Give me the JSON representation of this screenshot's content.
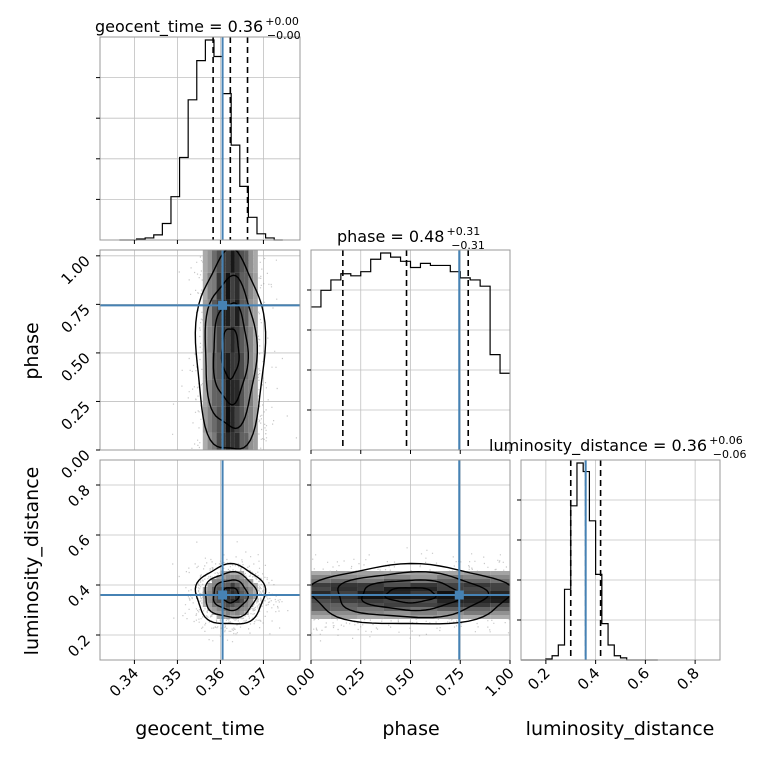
{
  "chart_data": {
    "type": "corner",
    "parameters": [
      "geocent_time",
      "phase",
      "luminosity_distance"
    ],
    "truths": [
      0.3605,
      0.745,
      0.36
    ],
    "colors": {
      "truth": "#4682b4",
      "hist": "#000000",
      "grid": "#c0c0c0",
      "frame": "#999999"
    },
    "panels": {
      "geocent_time": {
        "title_text": "geocent_time = 0.36",
        "title_sup": "+0.00",
        "title_sub": "−0.00",
        "xlim": [
          0.332,
          0.3785
        ],
        "quantiles": [
          0.3583,
          0.3623,
          0.3663
        ],
        "hist_edges": [
          0.3365,
          0.3385,
          0.3405,
          0.3425,
          0.3445,
          0.3465,
          0.3485,
          0.3505,
          0.3525,
          0.3545,
          0.3565,
          0.3585,
          0.3605,
          0.3625,
          0.3645,
          0.3665,
          0.3685,
          0.3705,
          0.3725,
          0.3745
        ],
        "hist_counts": [
          0,
          0.0,
          0.5,
          1.0,
          2.5,
          8,
          21,
          40,
          68,
          87,
          97,
          89,
          71,
          46,
          26,
          11,
          3,
          1,
          0
        ]
      },
      "phase": {
        "title_text": "phase = 0.48",
        "title_sup": "+0.31",
        "title_sub": "−0.31",
        "xlim": [
          0.0,
          1.0
        ],
        "quantiles": [
          0.16,
          0.48,
          0.79
        ],
        "hist_edges": [
          0.0,
          0.05,
          0.1,
          0.15,
          0.2,
          0.25,
          0.3,
          0.35,
          0.4,
          0.45,
          0.5,
          0.55,
          0.6,
          0.65,
          0.7,
          0.75,
          0.8,
          0.85,
          0.9,
          0.95,
          1.0
        ],
        "hist_counts": [
          69,
          77,
          82,
          85,
          84,
          86,
          92,
          95,
          93,
          91,
          88,
          90,
          89,
          89,
          86,
          83,
          82,
          79,
          46,
          37
        ]
      },
      "luminosity_distance": {
        "title_text": "luminosity_distance = 0.36",
        "title_sup": "+0.06",
        "title_sub": "−0.06",
        "xlim": [
          0.1,
          0.9
        ],
        "quantiles": [
          0.3,
          0.36,
          0.42
        ],
        "hist_edges": [
          0.1,
          0.125,
          0.15,
          0.175,
          0.2,
          0.225,
          0.25,
          0.275,
          0.3,
          0.325,
          0.35,
          0.375,
          0.4,
          0.425,
          0.45,
          0.475,
          0.5,
          0.525,
          0.55,
          0.575,
          0.6,
          0.625,
          0.65
        ],
        "hist_counts": [
          0,
          0,
          0,
          0,
          0.5,
          2,
          7,
          33,
          72,
          92,
          88,
          65,
          40,
          17,
          7,
          2,
          1,
          0,
          0,
          0,
          0,
          0
        ]
      }
    },
    "ticks": {
      "geocent_time": [
        "0.34",
        "0.35",
        "0.36",
        "0.37"
      ],
      "phase": [
        "0.00",
        "0.25",
        "0.50",
        "0.75",
        "1.00"
      ],
      "luminosity_distance": [
        "0.2",
        "0.4",
        "0.6",
        "0.8"
      ]
    },
    "tick_values": {
      "geocent_time": [
        0.34,
        0.35,
        0.36,
        0.37
      ],
      "phase": [
        0.0,
        0.25,
        0.5,
        0.75,
        1.0
      ],
      "luminosity_distance": [
        0.2,
        0.4,
        0.6,
        0.8
      ]
    },
    "ylims": {
      "phase_vs_geocent": [
        0.0,
        1.03
      ],
      "lumdist_rows": [
        0.1,
        0.9
      ]
    }
  }
}
